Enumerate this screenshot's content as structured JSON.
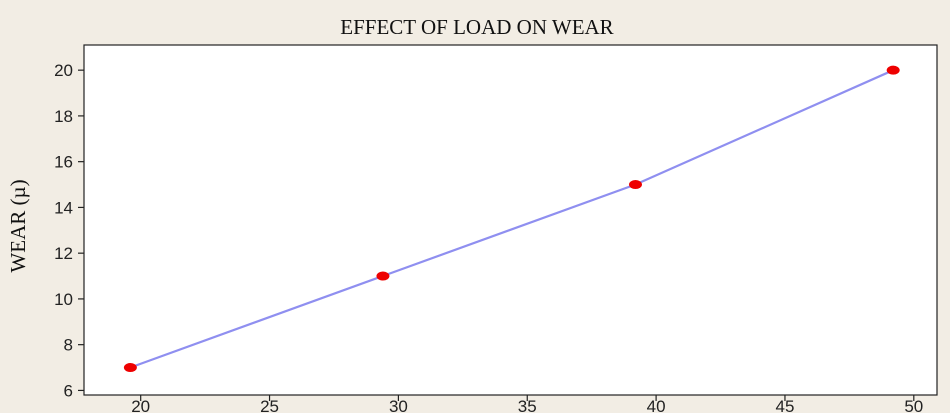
{
  "chart_data": {
    "type": "line",
    "title": "EFFECT OF LOAD ON WEAR",
    "xlabel": "",
    "ylabel": "WEAR (µ)",
    "x": [
      19.6,
      29.4,
      39.2,
      49.2
    ],
    "series": [
      {
        "values": [
          7,
          11,
          15,
          20
        ]
      }
    ],
    "xlim": [
      17.8,
      50.9
    ],
    "ylim": [
      5.8,
      21.1
    ],
    "xticks": [
      20,
      25,
      30,
      35,
      40,
      45,
      50
    ],
    "yticks": [
      6,
      8,
      10,
      12,
      14,
      16,
      18,
      20
    ],
    "grid": false,
    "colors": {
      "line": "#8f8ff0",
      "marker": "#ee0000",
      "background": "#f2ede4",
      "plot_background": "#ffffff",
      "axis": "#222222"
    }
  }
}
